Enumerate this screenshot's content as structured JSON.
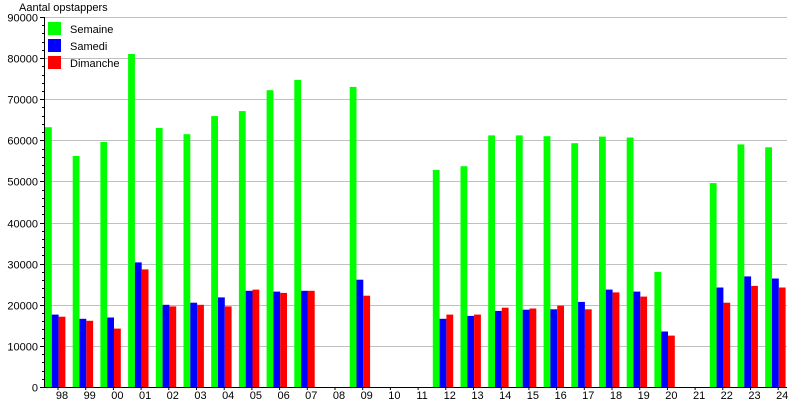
{
  "chart_data": {
    "type": "bar",
    "title": "",
    "ylabel": "Aantal opstappers",
    "xlabel": "",
    "ylim": [
      0,
      90000
    ],
    "yticks": [
      0,
      10000,
      20000,
      30000,
      40000,
      50000,
      60000,
      70000,
      80000,
      90000
    ],
    "grid": true,
    "legend_position": "top-left",
    "categories": [
      "98",
      "99",
      "00",
      "01",
      "02",
      "03",
      "04",
      "05",
      "06",
      "07",
      "08",
      "09",
      "10",
      "11",
      "12",
      "13",
      "14",
      "15",
      "16",
      "17",
      "18",
      "19",
      "20",
      "21",
      "22",
      "23",
      "24"
    ],
    "series": [
      {
        "name": "Semaine",
        "color": "#00ff00",
        "values": [
          63200,
          56200,
          59600,
          81000,
          63000,
          61500,
          65900,
          67100,
          72200,
          74700,
          null,
          73000,
          null,
          null,
          52800,
          53700,
          61200,
          61200,
          61000,
          59300,
          60900,
          60700,
          28000,
          null,
          49600,
          59000,
          58300
        ]
      },
      {
        "name": "Samedi",
        "color": "#0000ff",
        "values": [
          17600,
          16600,
          16900,
          30300,
          20000,
          20500,
          21800,
          23400,
          23200,
          23400,
          null,
          26100,
          null,
          null,
          16600,
          17300,
          18500,
          18800,
          18900,
          20700,
          23700,
          23200,
          13500,
          null,
          24200,
          26900,
          26400
        ]
      },
      {
        "name": "Dimanche",
        "color": "#ff0000",
        "values": [
          17100,
          16100,
          14200,
          28600,
          19600,
          20000,
          19600,
          23700,
          22900,
          23400,
          null,
          22200,
          null,
          null,
          17600,
          17600,
          19300,
          19100,
          19800,
          18900,
          23000,
          22000,
          12500,
          null,
          20500,
          24600,
          24200
        ]
      }
    ]
  }
}
